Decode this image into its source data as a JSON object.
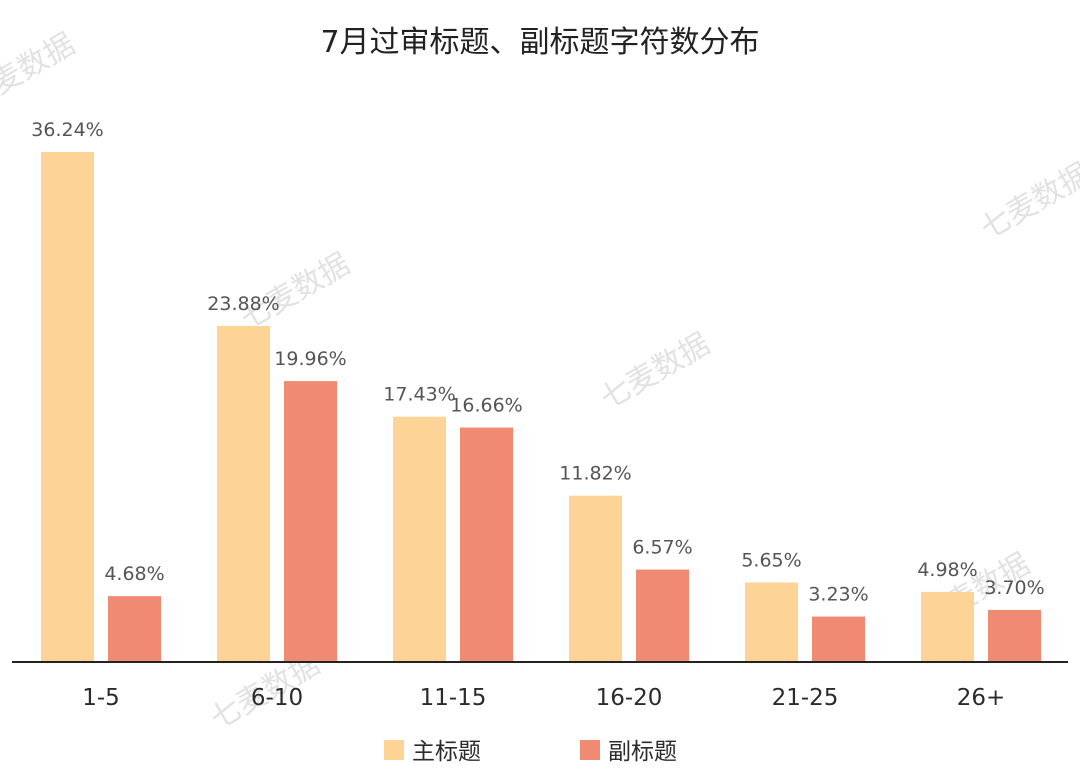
{
  "chart_data": {
    "type": "bar",
    "title": "7月过审标题、副标题字符数分布",
    "categories": [
      "1-5",
      "6-10",
      "11-15",
      "16-20",
      "21-25",
      "26+"
    ],
    "series": [
      {
        "name": "主标题",
        "color": "#FDD496",
        "values": [
          36.24,
          23.88,
          17.43,
          11.82,
          5.65,
          4.98
        ],
        "labels": [
          "36.24%",
          "23.88%",
          "17.43%",
          "11.82%",
          "5.65%",
          "4.98%"
        ]
      },
      {
        "name": "副标题",
        "color": "#F08A72",
        "values": [
          4.68,
          19.96,
          16.66,
          6.57,
          3.23,
          3.7
        ],
        "labels": [
          "4.68%",
          "19.96%",
          "16.66%",
          "6.57%",
          "3.23%",
          "3.70%"
        ]
      }
    ],
    "ylim": [
      0,
      36.24
    ],
    "grid": false,
    "legend_position": "bottom-center"
  },
  "watermark": "七麦数据"
}
